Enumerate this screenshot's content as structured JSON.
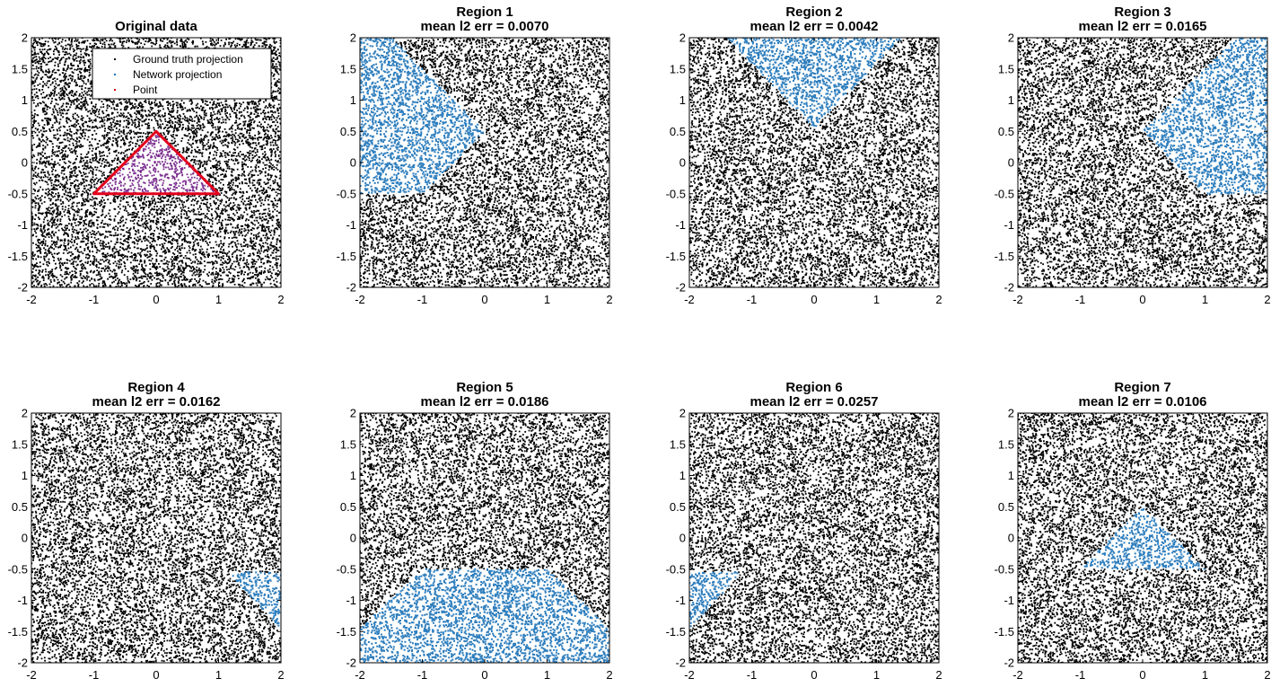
{
  "chart_data": [
    {
      "type": "scatter",
      "title": [
        "Original data"
      ],
      "xlim": [
        -2,
        2
      ],
      "ylim": [
        -2,
        2
      ],
      "xticks": [
        -2,
        -1,
        0,
        1,
        2
      ],
      "yticks": [
        -2,
        -1.5,
        -1,
        -0.5,
        0,
        0.5,
        1,
        1.5,
        2
      ],
      "grid": false,
      "legend": {
        "placement": "top-right",
        "entries": [
          {
            "label": "Ground truth projection",
            "color": "#000000"
          },
          {
            "label": "Network projection",
            "color": "#0072BD"
          },
          {
            "label": "Point",
            "color": "#D00000"
          }
        ]
      },
      "background_points": {
        "color": "#000000",
        "distribution": "uniform"
      },
      "highlight": {
        "shape": "triangle",
        "vertices": [
          [
            -1,
            -0.5
          ],
          [
            0,
            0.5
          ],
          [
            1,
            -0.5
          ]
        ],
        "edge_color": "#E4001B",
        "fill_point_color": "#7A2C8E"
      }
    },
    {
      "type": "scatter",
      "title": [
        "Region 1",
        "mean l2 err = 0.0070"
      ],
      "xlim": [
        -2,
        2
      ],
      "ylim": [
        -2,
        2
      ],
      "xticks": [
        -2,
        -1,
        0,
        1,
        2
      ],
      "yticks": [
        -2,
        -1.5,
        -1,
        -0.5,
        0,
        0.5,
        1,
        1.5,
        2
      ],
      "background_points": {
        "color": "#000000",
        "distribution": "uniform"
      },
      "region": {
        "color": "#2E7EBD",
        "polygon": [
          [
            -2,
            -0.5
          ],
          [
            -2,
            2
          ],
          [
            -1.5,
            2
          ],
          [
            0,
            0.5
          ],
          [
            -1,
            -0.5
          ]
        ]
      }
    },
    {
      "type": "scatter",
      "title": [
        "Region 2",
        "mean l2 err = 0.0042"
      ],
      "xlim": [
        -2,
        2
      ],
      "ylim": [
        -2,
        2
      ],
      "xticks": [
        -2,
        -1,
        0,
        1,
        2
      ],
      "yticks": [
        -2,
        -1.5,
        -1,
        -0.5,
        0,
        0.5,
        1,
        1.5,
        2
      ],
      "background_points": {
        "color": "#000000",
        "distribution": "uniform"
      },
      "region": {
        "color": "#2E7EBD",
        "polygon": [
          [
            -1.4,
            2
          ],
          [
            1.4,
            2
          ],
          [
            0,
            0.55
          ]
        ]
      }
    },
    {
      "type": "scatter",
      "title": [
        "Region 3",
        "mean l2 err = 0.0165"
      ],
      "xlim": [
        -2,
        2
      ],
      "ylim": [
        -2,
        2
      ],
      "xticks": [
        -2,
        -1,
        0,
        1,
        2
      ],
      "yticks": [
        -2,
        -1.5,
        -1,
        -0.5,
        0,
        0.5,
        1,
        1.5,
        2
      ],
      "background_points": {
        "color": "#000000",
        "distribution": "uniform"
      },
      "region": {
        "color": "#2E7EBD",
        "polygon": [
          [
            0,
            0.5
          ],
          [
            1.5,
            2
          ],
          [
            2,
            2
          ],
          [
            2,
            -0.5
          ],
          [
            1,
            -0.5
          ]
        ]
      }
    },
    {
      "type": "scatter",
      "title": [
        "Region 4",
        "mean l2 err = 0.0162"
      ],
      "xlim": [
        -2,
        2
      ],
      "ylim": [
        -2,
        2
      ],
      "xticks": [
        -2,
        -1,
        0,
        1,
        2
      ],
      "yticks": [
        -2,
        -1.5,
        -1,
        -0.5,
        0,
        0.5,
        1,
        1.5,
        2
      ],
      "background_points": {
        "color": "#000000",
        "distribution": "uniform"
      },
      "region": {
        "color": "#2E7EBD",
        "polygon": [
          [
            1.15,
            -0.55
          ],
          [
            2,
            -0.55
          ],
          [
            2,
            -1.45
          ]
        ]
      }
    },
    {
      "type": "scatter",
      "title": [
        "Region 5",
        "mean l2 err = 0.0186"
      ],
      "xlim": [
        -2,
        2
      ],
      "ylim": [
        -2,
        2
      ],
      "xticks": [
        -2,
        -1,
        0,
        1,
        2
      ],
      "yticks": [
        -2,
        -1.5,
        -1,
        -0.5,
        0,
        0.5,
        1,
        1.5,
        2
      ],
      "background_points": {
        "color": "#000000",
        "distribution": "uniform"
      },
      "region": {
        "color": "#2E7EBD",
        "polygon": [
          [
            -1,
            -0.5
          ],
          [
            1,
            -0.5
          ],
          [
            2,
            -1.45
          ],
          [
            2,
            -2
          ],
          [
            -2,
            -2
          ],
          [
            -2,
            -1.45
          ]
        ]
      }
    },
    {
      "type": "scatter",
      "title": [
        "Region 6",
        "mean l2 err = 0.0257"
      ],
      "xlim": [
        -2,
        2
      ],
      "ylim": [
        -2,
        2
      ],
      "xticks": [
        -2,
        -1,
        0,
        1,
        2
      ],
      "yticks": [
        -2,
        -1.5,
        -1,
        -0.5,
        0,
        0.5,
        1,
        1.5,
        2
      ],
      "background_points": {
        "color": "#000000",
        "distribution": "uniform"
      },
      "region": {
        "color": "#2E7EBD",
        "polygon": [
          [
            -2,
            -0.55
          ],
          [
            -1.15,
            -0.55
          ],
          [
            -2,
            -1.45
          ]
        ]
      }
    },
    {
      "type": "scatter",
      "title": [
        "Region 7",
        "mean l2 err = 0.0106"
      ],
      "xlim": [
        -2,
        2
      ],
      "ylim": [
        -2,
        2
      ],
      "xticks": [
        -2,
        -1,
        0,
        1,
        2
      ],
      "yticks": [
        -2,
        -1.5,
        -1,
        -0.5,
        0,
        0.5,
        1,
        1.5,
        2
      ],
      "background_points": {
        "color": "#000000",
        "distribution": "uniform"
      },
      "region": {
        "color": "#2E7EBD",
        "polygon": [
          [
            -1,
            -0.5
          ],
          [
            0,
            0.5
          ],
          [
            1,
            -0.5
          ]
        ]
      }
    }
  ]
}
